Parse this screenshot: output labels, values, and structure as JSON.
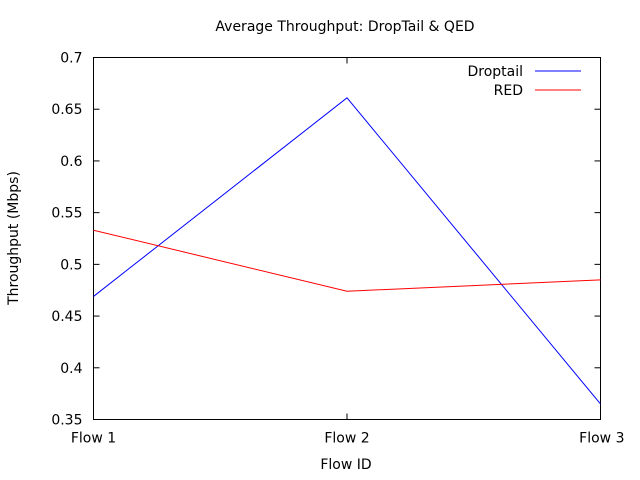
{
  "chart_data": {
    "type": "line",
    "title": "Average Throughput: DropTail & QED",
    "xlabel": "Flow ID",
    "ylabel": "Throughput (Mbps)",
    "categories": [
      "Flow 1",
      "Flow 2",
      "Flow 3"
    ],
    "ylim": [
      0.35,
      0.7
    ],
    "yticks": [
      0.35,
      0.4,
      0.45,
      0.5,
      0.55,
      0.6,
      0.65,
      0.7
    ],
    "ytick_labels": [
      "0.35",
      "0.4",
      "0.45",
      "0.5",
      "0.55",
      "0.6",
      "0.65",
      "0.7"
    ],
    "grid": false,
    "legend_position": "top-right",
    "series": [
      {
        "name": "Droptail",
        "color": "#0000ff",
        "values": [
          0.469,
          0.661,
          0.365
        ]
      },
      {
        "name": "RED",
        "color": "#ff0000",
        "values": [
          0.533,
          0.474,
          0.485
        ]
      }
    ]
  }
}
